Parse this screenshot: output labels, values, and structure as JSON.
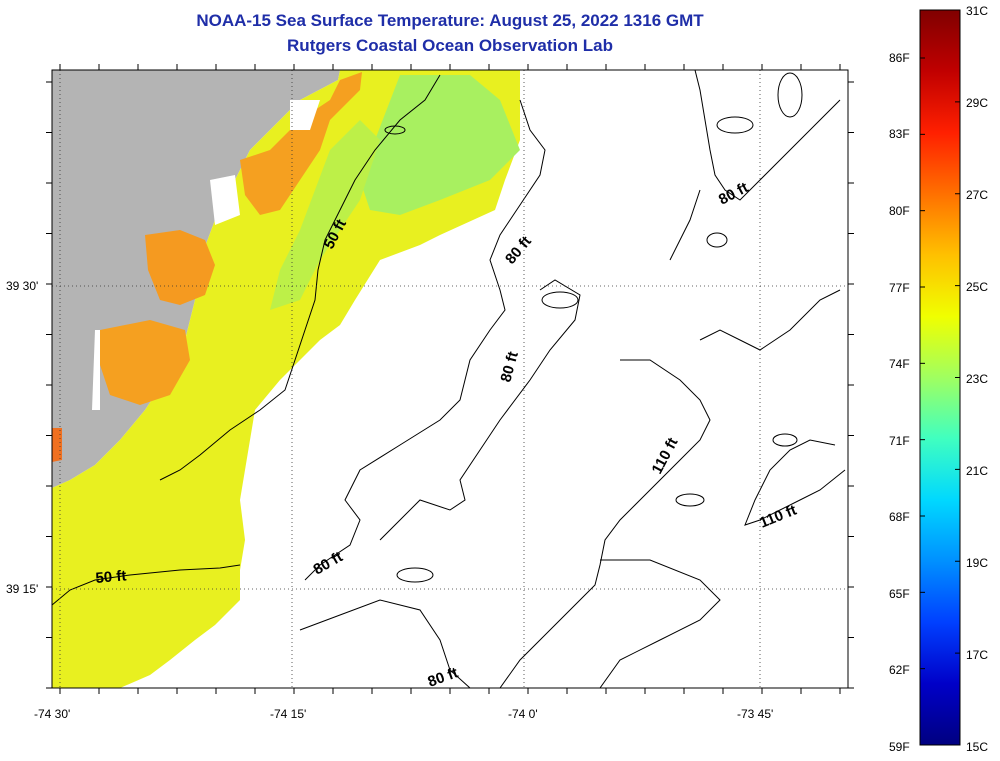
{
  "title": "NOAA-15 Sea Surface Temperature:  August 25, 2022 1316 GMT",
  "subtitle": "Rutgers Coastal Ocean Observation Lab",
  "axes": {
    "lat_labels": [
      "39 30'",
      "39 15'"
    ],
    "lon_labels": [
      "-74 30'",
      "-74 15'",
      "-74 0'",
      "-73 45'"
    ]
  },
  "contours": [
    {
      "label": "50 ft",
      "depth": 50
    },
    {
      "label": "50 ft",
      "depth": 50
    },
    {
      "label": "80 ft",
      "depth": 80
    },
    {
      "label": "80 ft",
      "depth": 80
    },
    {
      "label": "80 ft",
      "depth": 80
    },
    {
      "label": "80 ft",
      "depth": 80
    },
    {
      "label": "80 ft",
      "depth": 80
    },
    {
      "label": "110 ft",
      "depth": 110
    },
    {
      "label": "110 ft",
      "depth": 110
    }
  ],
  "colorbar": {
    "celsius": [
      "31C",
      "29C",
      "27C",
      "25C",
      "23C",
      "21C",
      "19C",
      "17C",
      "15C"
    ],
    "fahrenheit": [
      "86F",
      "83F",
      "80F",
      "77F",
      "74F",
      "71F",
      "68F",
      "65F",
      "62F",
      "59F"
    ],
    "colors": [
      "#000080",
      "#0000c8",
      "#0040ff",
      "#0090ff",
      "#00d8ff",
      "#40ffc0",
      "#a0ff60",
      "#f0ff00",
      "#ffc000",
      "#ff7000",
      "#ff2000",
      "#c00000",
      "#800000"
    ]
  },
  "colors": {
    "land": "#b4b4b4",
    "title": "#1f2ea8",
    "sst_warm_land": "#f5a020",
    "sst_yellow": "#e8f020",
    "sst_green": "#a0f060"
  }
}
